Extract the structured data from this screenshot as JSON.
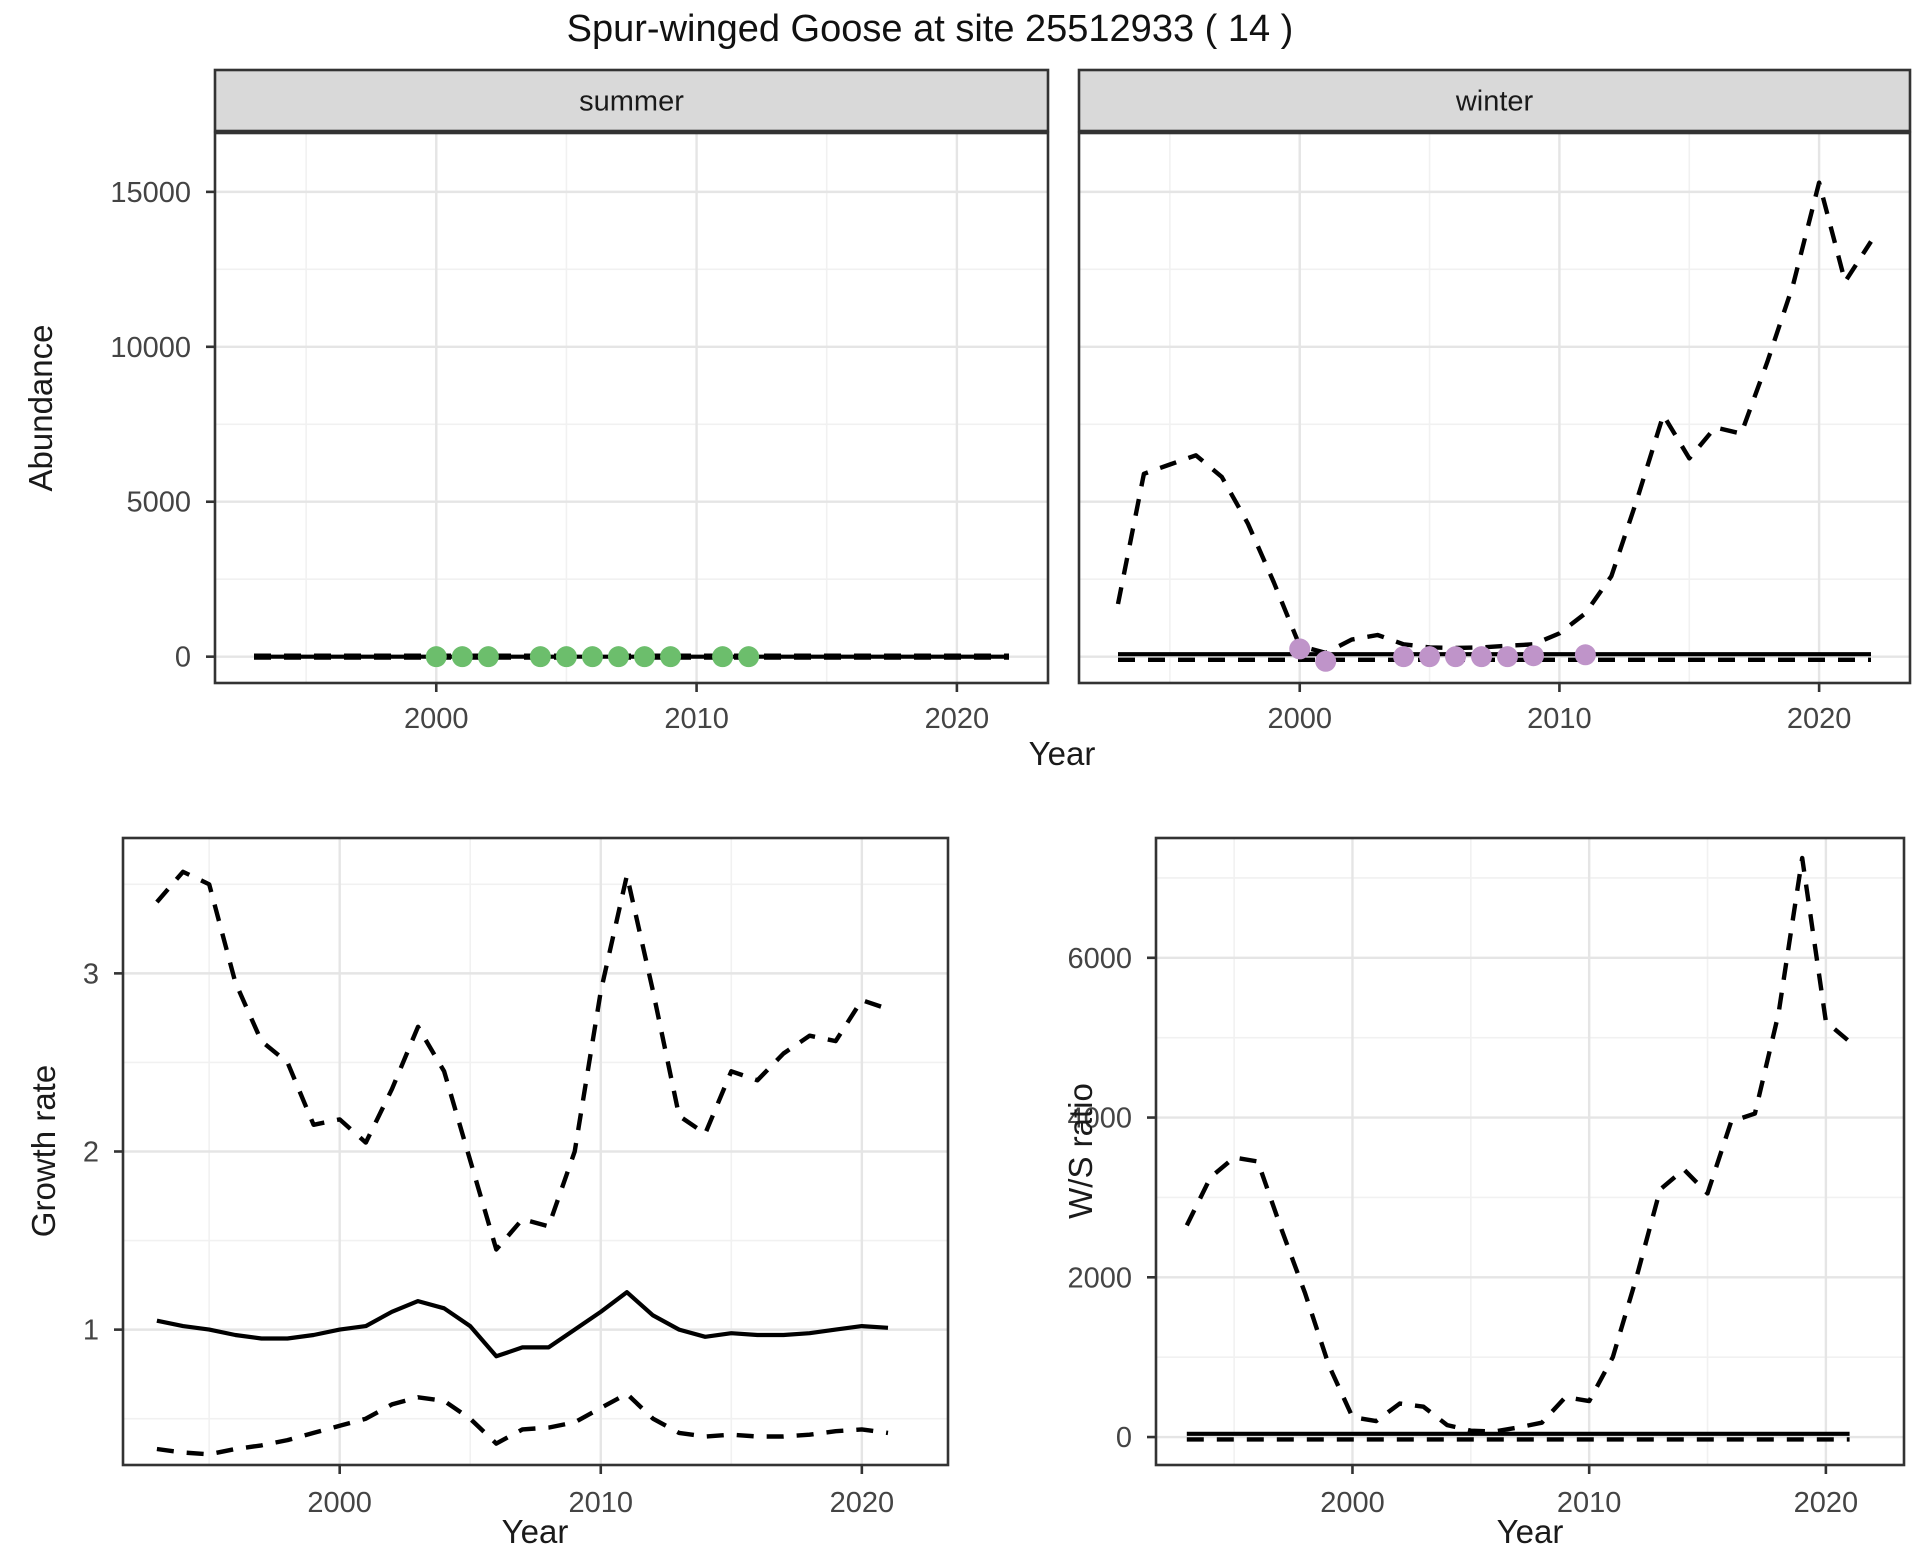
{
  "title": "Spur-winged Goose at site 25512933 ( 14 )",
  "colors": {
    "summer_point": "#6cbe6c",
    "winter_point": "#bf94c9",
    "line": "#000000",
    "strip_bg": "#d9d9d9",
    "strip_text": "#1a1a1a",
    "grid_major": "#e5e5e5",
    "grid_minor": "#f1f1f1",
    "panel_border": "#333333",
    "tick_text": "#444444"
  },
  "chart_data": [
    {
      "id": "abundance",
      "type": "line",
      "title": "",
      "xlabel": "Year",
      "ylabel": "Abundance",
      "xlim": [
        1991.5,
        2023.5
      ],
      "ylim": [
        -850,
        16900
      ],
      "xticks": [
        2000,
        2010,
        2020
      ],
      "xticks_minor": [
        1995,
        2005,
        2015
      ],
      "yticks": [
        0,
        5000,
        10000,
        15000
      ],
      "yticks_minor": [
        2500,
        7500,
        12500
      ],
      "grid": "on",
      "legend": "none",
      "years": [
        1993,
        1994,
        1995,
        1996,
        1997,
        1998,
        1999,
        2000,
        2001,
        2002,
        2003,
        2004,
        2005,
        2006,
        2007,
        2008,
        2009,
        2010,
        2011,
        2012,
        2013,
        2014,
        2015,
        2016,
        2017,
        2018,
        2019,
        2020,
        2021,
        2022
      ],
      "facets": [
        {
          "label": "summer",
          "trend": [
            0,
            0,
            0,
            0,
            0,
            0,
            0,
            0,
            0,
            0,
            0,
            0,
            0,
            0,
            0,
            0,
            0,
            0,
            0,
            0,
            0,
            0,
            0,
            0,
            0,
            0,
            0,
            0,
            0,
            0
          ],
          "ci_upper": [
            30,
            30,
            30,
            30,
            30,
            30,
            30,
            30,
            30,
            30,
            30,
            30,
            30,
            30,
            30,
            30,
            30,
            30,
            30,
            30,
            30,
            30,
            30,
            30,
            30,
            30,
            30,
            30,
            30,
            30
          ],
          "ci_lower": [
            -30,
            -30,
            -30,
            -30,
            -30,
            -30,
            -30,
            -30,
            -30,
            -30,
            -30,
            -30,
            -30,
            -30,
            -30,
            -30,
            -30,
            -30,
            -30,
            -30,
            -30,
            -30,
            -30,
            -30,
            -30,
            -30,
            -30,
            -30,
            -30,
            -30
          ],
          "points": {
            "years": [
              2000,
              2001,
              2002,
              2004,
              2005,
              2006,
              2007,
              2008,
              2009,
              2011,
              2012
            ],
            "values": [
              0,
              0,
              0,
              0,
              0,
              0,
              0,
              0,
              0,
              0,
              0
            ],
            "color_key": "summer_point"
          }
        },
        {
          "label": "winter",
          "trend": [
            80,
            80,
            80,
            80,
            80,
            80,
            80,
            80,
            80,
            80,
            80,
            80,
            80,
            80,
            80,
            80,
            80,
            80,
            80,
            80,
            80,
            80,
            80,
            80,
            80,
            80,
            80,
            80,
            80,
            80
          ],
          "ci_upper": [
            1700,
            5900,
            6200,
            6500,
            5800,
            4300,
            2400,
            350,
            120,
            550,
            700,
            400,
            300,
            280,
            300,
            350,
            400,
            750,
            1400,
            2600,
            5100,
            7800,
            6400,
            7400,
            7200,
            9500,
            12000,
            15300,
            12100,
            13400
          ],
          "ci_lower": [
            -100,
            -100,
            -100,
            -100,
            -100,
            -100,
            -100,
            -100,
            -100,
            -100,
            -100,
            -100,
            -100,
            -100,
            -100,
            -100,
            -100,
            -100,
            -100,
            -100,
            -100,
            -100,
            -100,
            -100,
            -100,
            -100,
            -100,
            -100,
            -100,
            -100
          ],
          "points": {
            "years": [
              2000,
              2001,
              2004,
              2005,
              2006,
              2007,
              2008,
              2009,
              2011
            ],
            "values": [
              250,
              -150,
              0,
              0,
              0,
              0,
              0,
              30,
              60
            ],
            "color_key": "winter_point"
          }
        }
      ]
    },
    {
      "id": "growth_rate",
      "type": "line",
      "title": "",
      "xlabel": "Year",
      "ylabel": "Growth rate",
      "xlim": [
        1991.7,
        2023.3
      ],
      "ylim": [
        0.24,
        3.76
      ],
      "xticks": [
        2000,
        2010,
        2020
      ],
      "xticks_minor": [
        1995,
        2005,
        2015
      ],
      "yticks": [
        1,
        2,
        3
      ],
      "yticks_minor": [
        0.5,
        1.5,
        2.5,
        3.5
      ],
      "grid": "on",
      "legend": "none",
      "years": [
        1993,
        1994,
        1995,
        1996,
        1997,
        1998,
        1999,
        2000,
        2001,
        2002,
        2003,
        2004,
        2005,
        2006,
        2007,
        2008,
        2009,
        2010,
        2011,
        2012,
        2013,
        2014,
        2015,
        2016,
        2017,
        2018,
        2019,
        2020,
        2021
      ],
      "trend": [
        1.05,
        1.02,
        1.0,
        0.97,
        0.95,
        0.95,
        0.97,
        1.0,
        1.02,
        1.1,
        1.16,
        1.12,
        1.02,
        0.85,
        0.9,
        0.9,
        1.0,
        1.1,
        1.21,
        1.08,
        1.0,
        0.96,
        0.98,
        0.97,
        0.97,
        0.98,
        1.0,
        1.02,
        1.01
      ],
      "ci_upper": [
        3.4,
        3.57,
        3.5,
        2.95,
        2.62,
        2.5,
        2.15,
        2.18,
        2.05,
        2.35,
        2.7,
        2.45,
        1.95,
        1.45,
        1.62,
        1.58,
        2.0,
        2.9,
        3.55,
        2.9,
        2.2,
        2.1,
        2.45,
        2.4,
        2.55,
        2.65,
        2.62,
        2.85,
        2.8
      ],
      "ci_lower": [
        0.33,
        0.31,
        0.3,
        0.33,
        0.35,
        0.38,
        0.42,
        0.46,
        0.5,
        0.58,
        0.62,
        0.6,
        0.5,
        0.36,
        0.44,
        0.45,
        0.48,
        0.56,
        0.64,
        0.5,
        0.42,
        0.4,
        0.41,
        0.4,
        0.4,
        0.41,
        0.43,
        0.44,
        0.42
      ]
    },
    {
      "id": "ws_ratio",
      "type": "line",
      "title": "",
      "xlabel": "Year",
      "ylabel": "W/S ratio",
      "xlim": [
        1991.7,
        2023.3
      ],
      "ylim": [
        -350,
        7500
      ],
      "xticks": [
        2000,
        2010,
        2020
      ],
      "xticks_minor": [
        1995,
        2005,
        2015
      ],
      "yticks": [
        0,
        2000,
        4000,
        6000
      ],
      "yticks_minor": [
        1000,
        3000,
        5000,
        7000
      ],
      "grid": "on",
      "legend": "none",
      "years": [
        1993,
        1994,
        1995,
        1996,
        1997,
        1998,
        1999,
        2000,
        2001,
        2002,
        2003,
        2004,
        2005,
        2006,
        2007,
        2008,
        2009,
        2010,
        2011,
        2012,
        2013,
        2014,
        2015,
        2016,
        2017,
        2018,
        2019,
        2020,
        2021
      ],
      "trend": [
        40,
        40,
        40,
        40,
        40,
        40,
        40,
        40,
        40,
        40,
        40,
        40,
        40,
        40,
        40,
        40,
        40,
        40,
        40,
        40,
        40,
        40,
        40,
        40,
        40,
        40,
        40,
        40,
        40
      ],
      "ci_upper": [
        2650,
        3250,
        3500,
        3450,
        2600,
        1800,
        900,
        250,
        200,
        420,
        380,
        150,
        80,
        70,
        120,
        180,
        500,
        450,
        1000,
        2000,
        3100,
        3350,
        3050,
        3950,
        4050,
        5300,
        7250,
        5200,
        4950
      ],
      "ci_lower": [
        -30,
        -30,
        -30,
        -30,
        -30,
        -30,
        -30,
        -30,
        -30,
        -30,
        -30,
        -30,
        -30,
        -30,
        -30,
        -30,
        -30,
        -30,
        -30,
        -30,
        -30,
        -30,
        -30,
        -30,
        -30,
        -30,
        -30,
        -30,
        -30
      ]
    }
  ]
}
